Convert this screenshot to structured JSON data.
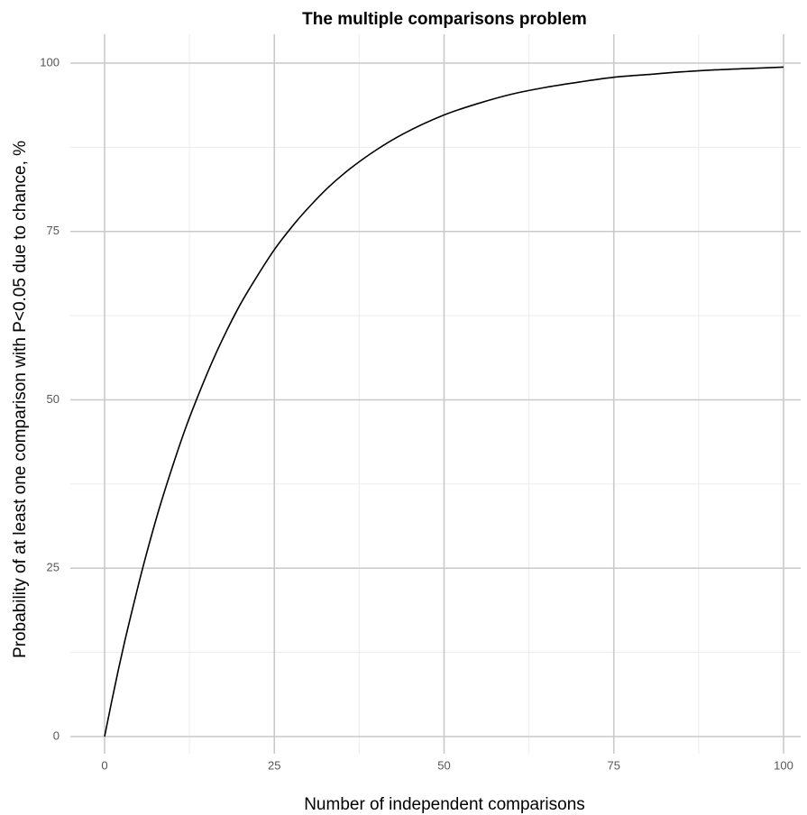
{
  "chart_data": {
    "type": "line",
    "title": "The multiple comparisons problem",
    "xlabel": "Number of independent comparisons",
    "ylabel": "Probability of at least one comparison with P<0.05 due to chance, %",
    "xlim": [
      0,
      100
    ],
    "ylim": [
      0,
      100
    ],
    "x_ticks": [
      0,
      25,
      50,
      75,
      100
    ],
    "y_ticks": [
      0,
      25,
      50,
      75,
      100
    ],
    "x_minor_ticks": [
      12.5,
      37.5,
      62.5,
      87.5
    ],
    "y_minor_ticks": [
      12.5,
      37.5,
      62.5,
      87.5
    ],
    "grid": true,
    "series": [
      {
        "x": [
          0,
          1,
          2,
          3,
          4,
          5,
          6,
          8,
          10,
          12,
          14,
          16,
          18,
          20,
          22,
          25,
          28,
          30,
          33,
          36,
          40,
          44,
          50,
          55,
          60,
          65,
          70,
          75,
          80,
          85,
          90,
          95,
          100
        ],
        "values": [
          0,
          5.0,
          9.8,
          14.3,
          18.5,
          22.6,
          26.5,
          33.7,
          40.1,
          46.0,
          51.2,
          56.0,
          60.3,
          64.2,
          67.6,
          72.3,
          76.2,
          78.5,
          81.6,
          84.2,
          87.1,
          89.5,
          92.3,
          94.0,
          95.4,
          96.4,
          97.2,
          97.9,
          98.3,
          98.7,
          99.0,
          99.2,
          99.4
        ]
      }
    ]
  }
}
